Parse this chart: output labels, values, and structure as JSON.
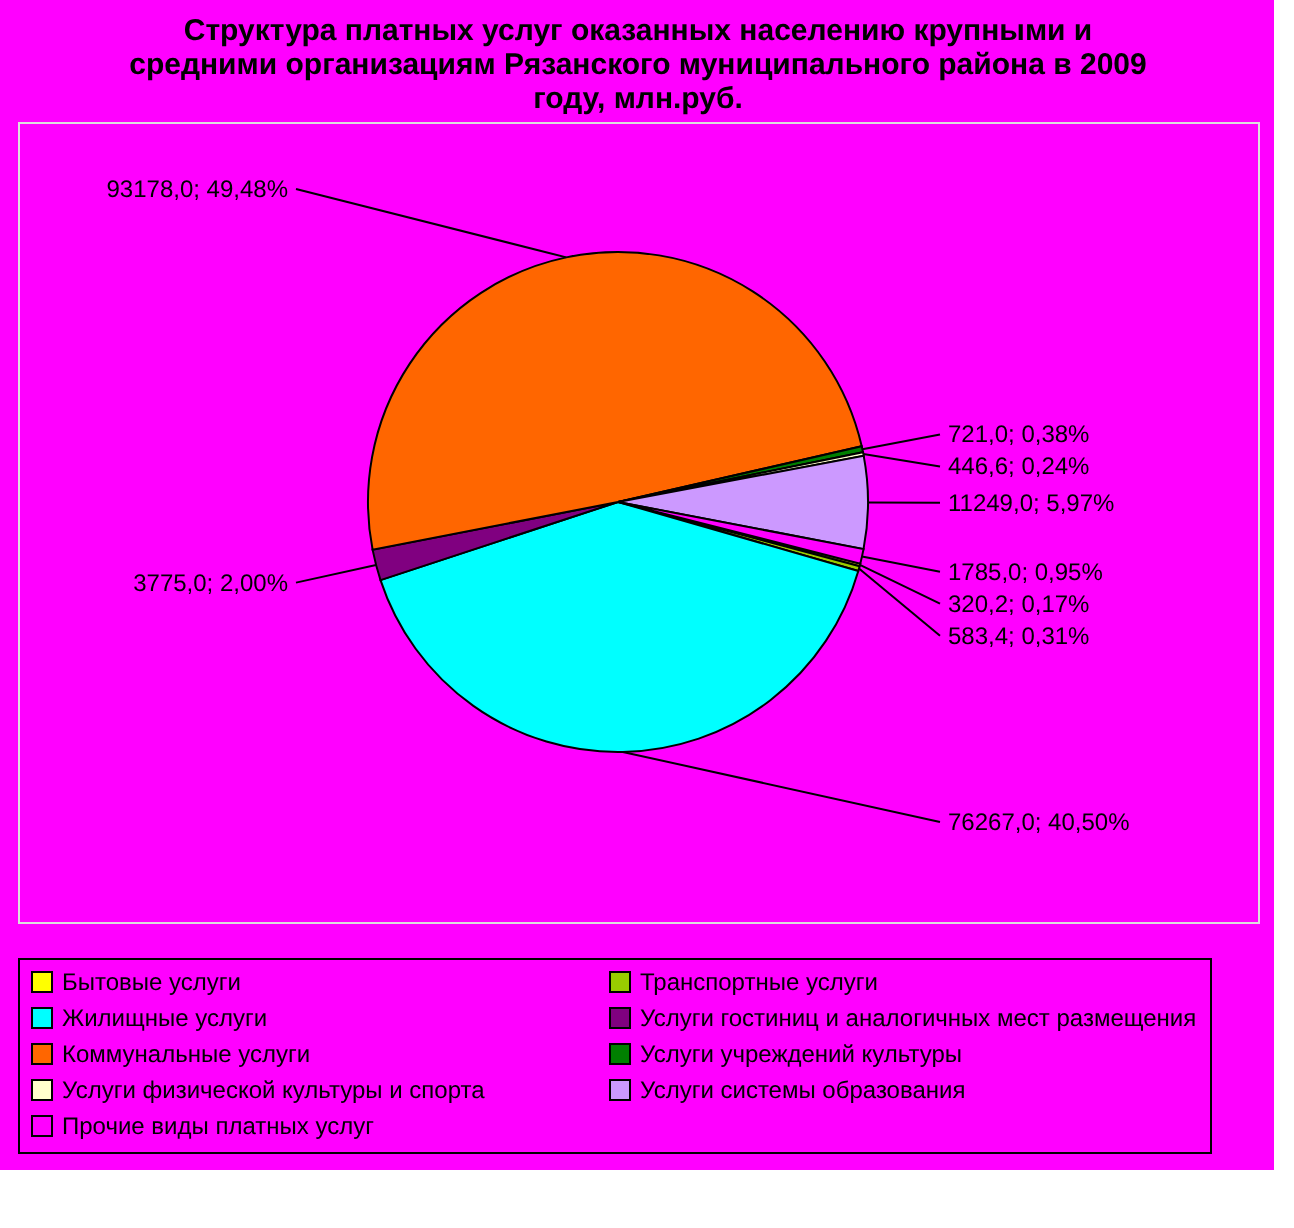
{
  "chart_data": {
    "type": "pie",
    "title": "Структура платных услуг оказанных населению крупными и средними организациям Рязанского муниципального района в 2009 году, млн.руб.",
    "categories": [
      "Бытовые услуги",
      "Транспортные услуги",
      "Жилищные услуги",
      "Услуги гостиниц и аналогичных мест размещения",
      "Коммунальные услуги",
      "Услуги учреждений культуры",
      "Услуги физической культуры и спорта",
      "Услуги системы образования",
      "Прочие виды платных услуг"
    ],
    "values": [
      320.2,
      583.4,
      76267.0,
      3775.0,
      93178.0,
      721.0,
      446.6,
      11249.0,
      1785.0
    ],
    "value_labels": [
      "320,2; 0,17%",
      "583,4; 0,31%",
      "76267,0; 40,50%",
      "3775,0; 2,00%",
      "93178,0; 49,48%",
      "721,0; 0,38%",
      "446,6; 0,24%",
      "11249,0; 5,97%",
      "1785,0; 0,95%"
    ],
    "colors": [
      "#ffff00",
      "#99cc00",
      "#00ffff",
      "#800080",
      "#ff6600",
      "#008000",
      "#ffffcc",
      "#cc99ff",
      "#ff00ff"
    ],
    "legend": "bottom"
  }
}
